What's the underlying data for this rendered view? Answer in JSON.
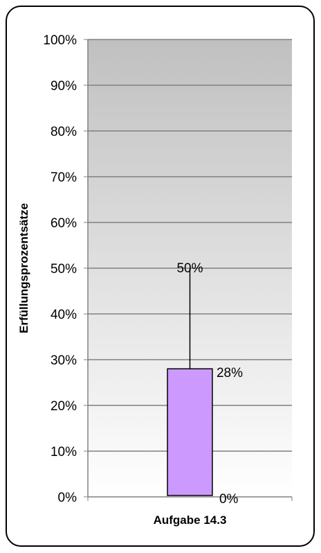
{
  "chart_data": {
    "type": "bar",
    "title": "",
    "ylabel": "Erfüllungsprozentsätze",
    "xlabel": "",
    "categories": [
      "Aufgabe 14.3"
    ],
    "ylim": [
      0,
      100
    ],
    "yticks": [
      "0%",
      "10%",
      "20%",
      "30%",
      "40%",
      "50%",
      "60%",
      "70%",
      "80%",
      "90%",
      "100%"
    ],
    "series": [
      {
        "min": 0,
        "upper_box": 28,
        "max": 50,
        "labels": {
          "min": "0%",
          "upper_box": "28%",
          "max": "50%"
        }
      }
    ],
    "grid": true,
    "legend": "none",
    "colors": {
      "box": "#cc99ff",
      "plot_bg_top": "#c0c0c0",
      "plot_bg_bottom": "#ffffff",
      "grid": "#808080"
    }
  }
}
